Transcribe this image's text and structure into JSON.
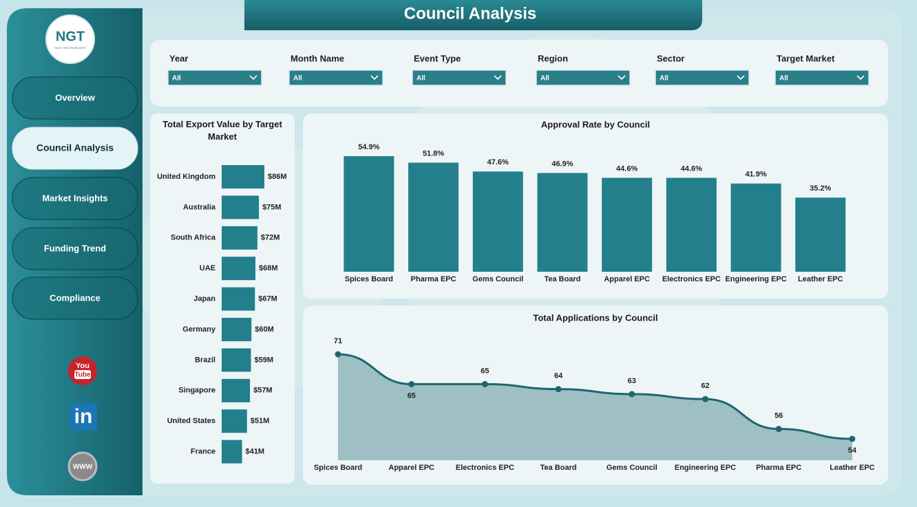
{
  "header": {
    "title": "Council Analysis"
  },
  "logo": {
    "mark": "NGT",
    "caption": "NEXT GEN TEMPLATES"
  },
  "nav": [
    "Overview",
    "Council Analysis",
    "Market Insights",
    "Funding Trend",
    "Compliance"
  ],
  "social": {
    "youtube": [
      "You",
      "Tube"
    ],
    "linkedin": "in",
    "web": "WWW"
  },
  "filters": [
    {
      "label": "Year",
      "value": "All"
    },
    {
      "label": "Month Name",
      "value": "All"
    },
    {
      "label": "Event Type",
      "value": "All"
    },
    {
      "label": "Region",
      "value": "All"
    },
    {
      "label": "Sector",
      "value": "All"
    },
    {
      "label": "Target Market",
      "value": "All"
    }
  ],
  "chart_data": [
    {
      "type": "hbar",
      "title": "Total Export Value by Target Market",
      "categories": [
        "United Kingdom",
        "Australia",
        "South Africa",
        "UAE",
        "Japan",
        "Germany",
        "Brazil",
        "Singapore",
        "United States",
        "France"
      ],
      "values": [
        86,
        75,
        72,
        68,
        67,
        60,
        59,
        57,
        51,
        41
      ],
      "value_labels": [
        "$86M",
        "$75M",
        "$72M",
        "$68M",
        "$67M",
        "$60M",
        "$59M",
        "$57M",
        "$51M",
        "$41M"
      ],
      "color": "#237f8b"
    },
    {
      "type": "bar",
      "title": "Approval Rate by Council",
      "categories": [
        "Spices Board",
        "Pharma EPC",
        "Gems Council",
        "Tea Board",
        "Apparel EPC",
        "Electronics EPC",
        "Engineering EPC",
        "Leather EPC"
      ],
      "values": [
        54.9,
        51.8,
        47.6,
        46.9,
        44.6,
        44.6,
        41.9,
        35.2
      ],
      "value_labels": [
        "54.9%",
        "51.8%",
        "47.6%",
        "46.9%",
        "44.6%",
        "44.6%",
        "41.9%",
        "35.2%"
      ],
      "color": "#237f8b"
    },
    {
      "type": "area",
      "title": "Total Applications by Council",
      "categories": [
        "Spices Board",
        "Apparel EPC",
        "Electronics EPC",
        "Tea Board",
        "Gems Council",
        "Engineering EPC",
        "Pharma EPC",
        "Leather EPC"
      ],
      "values": [
        71,
        65,
        65,
        64,
        63,
        62,
        56,
        54
      ],
      "color": "#1f6670"
    }
  ]
}
